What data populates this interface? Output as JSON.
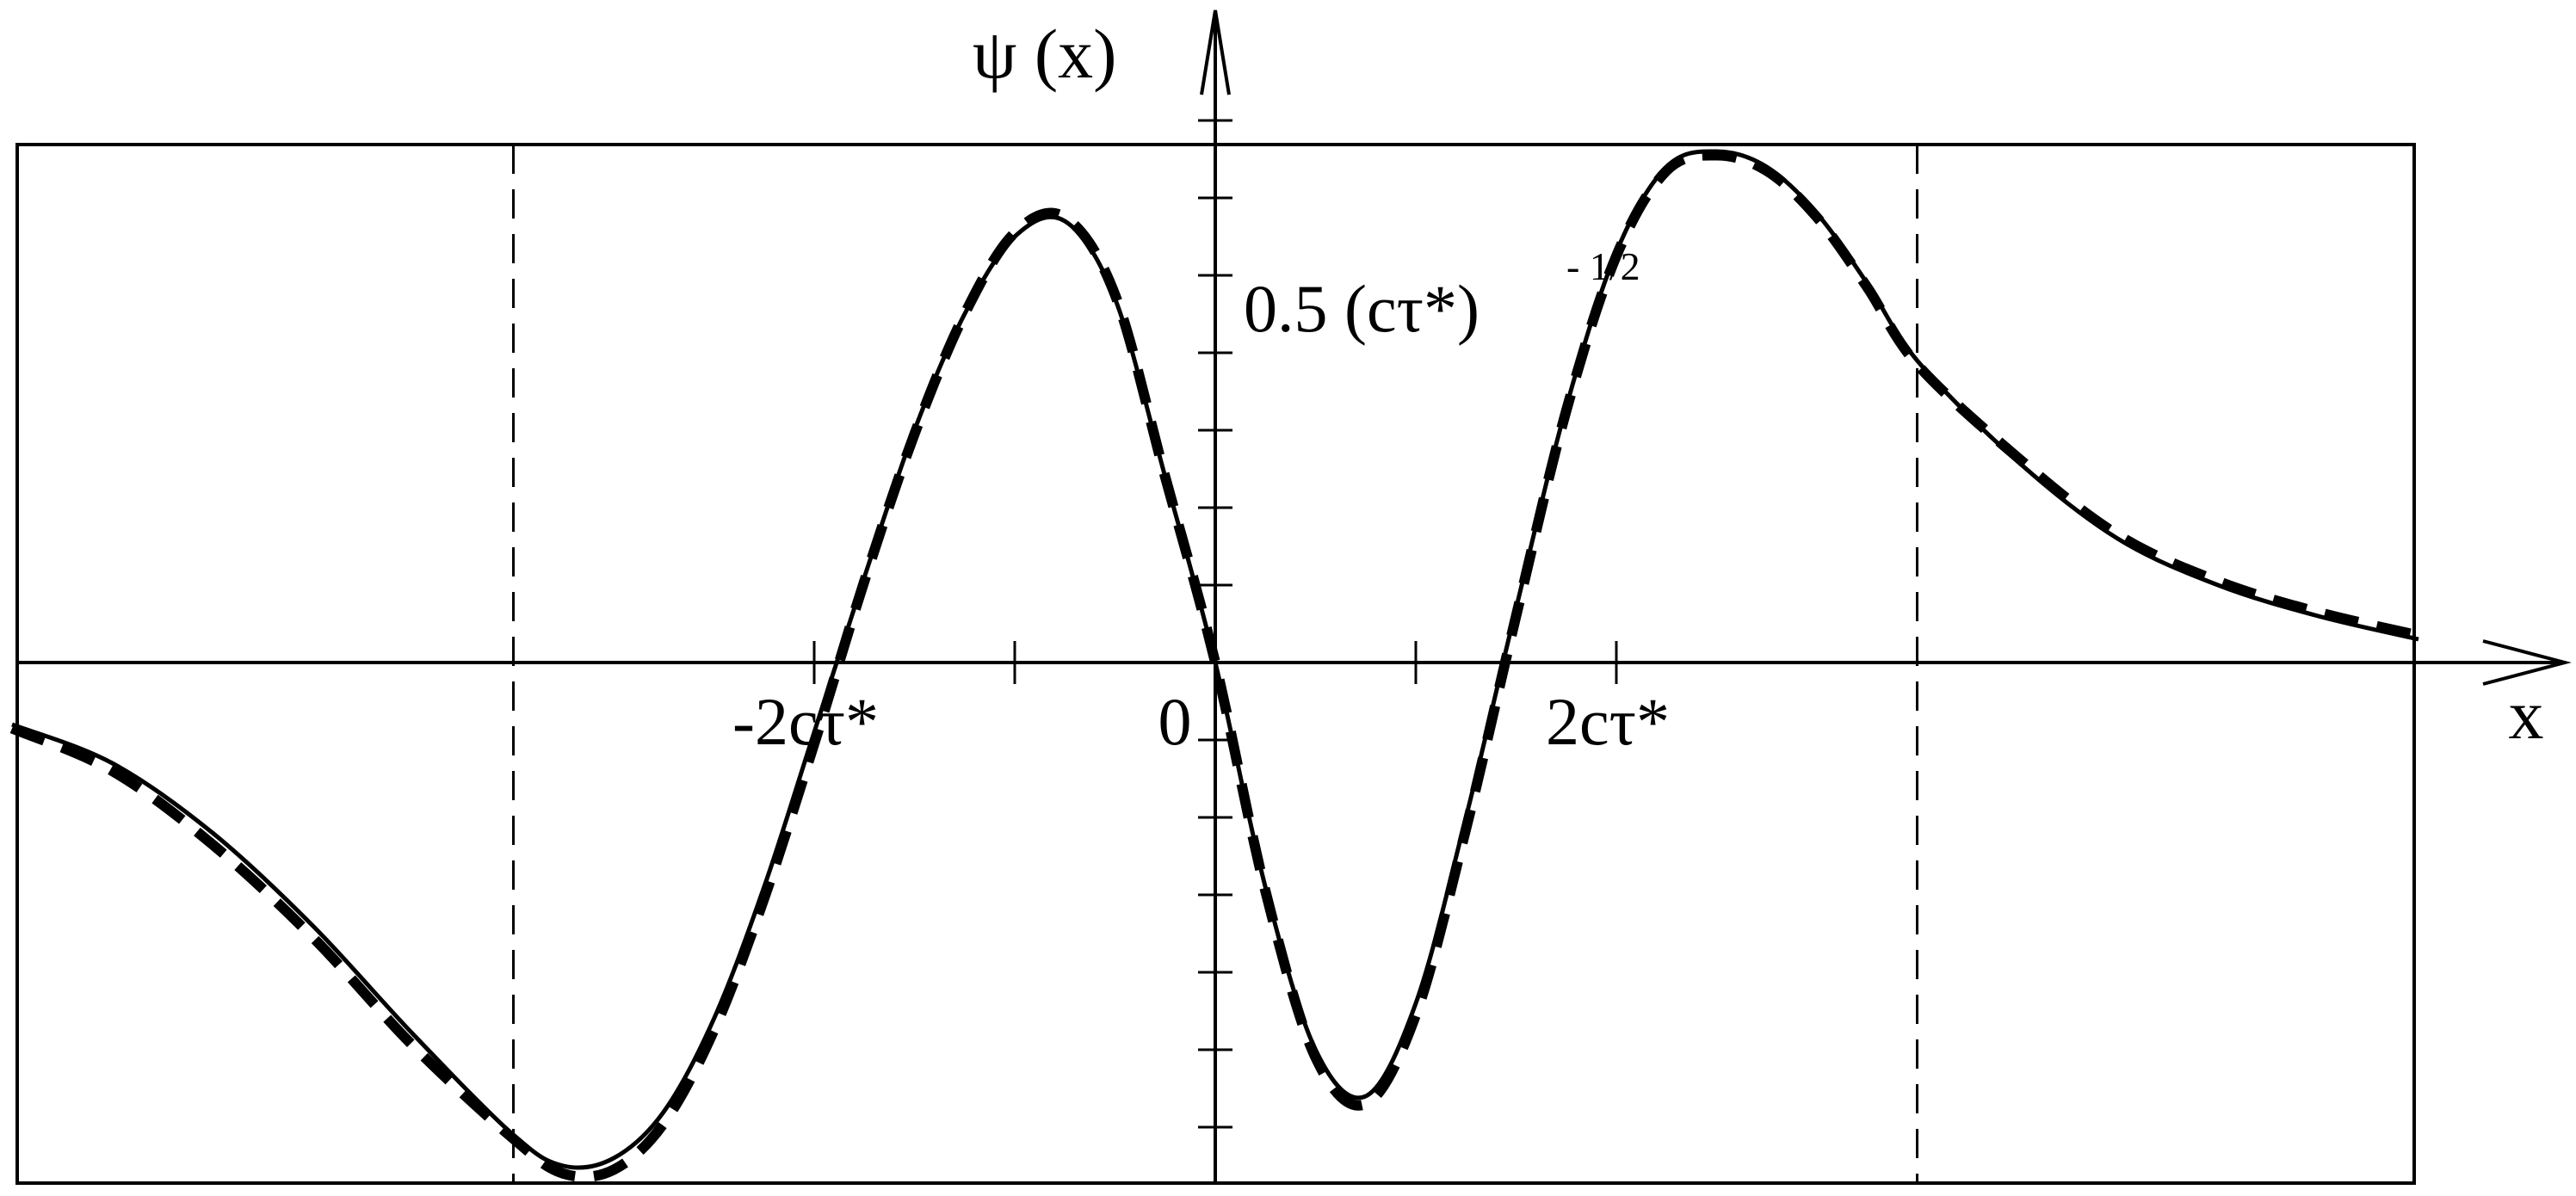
{
  "chart_data": {
    "type": "line",
    "title": "",
    "xlabel": "x",
    "ylabel": "ψ (x)",
    "x_tick_labels": [
      "-2cτ*",
      "0",
      "2cτ*"
    ],
    "x_ticks": [
      -2,
      0,
      2
    ],
    "y_tick_annotation": "0.5 (cτ*)",
    "y_tick_annotation_exponent": "- 1/2",
    "y_tick_annotation_value": 0.5,
    "xlim": [
      -6,
      6
    ],
    "ylim": [
      -0.75,
      0.75
    ],
    "vertical_dashed_lines_x": [
      -3.5,
      3.5
    ],
    "grid": false,
    "series": [
      {
        "style": "solid",
        "x": [
          -6.0,
          -5.5,
          -5.0,
          -4.5,
          -4.0,
          -3.5,
          -3.25,
          -3.0,
          -2.75,
          -2.5,
          -2.25,
          -2.0,
          -1.75,
          -1.5,
          -1.25,
          -1.0,
          -0.75,
          -0.5,
          -0.25,
          0.0,
          0.25,
          0.5,
          0.75,
          1.0,
          1.25,
          1.5,
          1.75,
          2.0,
          2.25,
          2.5,
          2.75,
          3.0,
          3.25,
          3.5,
          4.0,
          4.5,
          5.0,
          5.5,
          6.0
        ],
        "y": [
          -0.08,
          -0.13,
          -0.22,
          -0.34,
          -0.48,
          -0.61,
          -0.65,
          -0.64,
          -0.58,
          -0.46,
          -0.29,
          -0.09,
          0.11,
          0.3,
          0.45,
          0.55,
          0.57,
          0.47,
          0.24,
          0.0,
          -0.29,
          -0.5,
          -0.56,
          -0.44,
          -0.2,
          0.07,
          0.33,
          0.53,
          0.64,
          0.66,
          0.64,
          0.58,
          0.49,
          0.39,
          0.26,
          0.16,
          0.1,
          0.06,
          0.03
        ]
      },
      {
        "style": "dashed",
        "x": [
          -6.0,
          -5.5,
          -5.0,
          -4.5,
          -4.0,
          -3.5,
          -3.25,
          -3.0,
          -2.75,
          -2.5,
          -2.25,
          -2.0,
          -1.75,
          -1.5,
          -1.25,
          -1.0,
          -0.75,
          -0.5,
          -0.25,
          0.0,
          0.25,
          0.5,
          0.75,
          1.0,
          1.25,
          1.5,
          1.75,
          2.0,
          2.25,
          2.5,
          2.75,
          3.0,
          3.25,
          3.5,
          4.0,
          4.5,
          5.0,
          5.5,
          6.0
        ],
        "y": [
          -0.085,
          -0.14,
          -0.235,
          -0.355,
          -0.495,
          -0.615,
          -0.66,
          -0.655,
          -0.595,
          -0.475,
          -0.305,
          -0.105,
          0.105,
          0.295,
          0.45,
          0.555,
          0.575,
          0.475,
          0.24,
          0.0,
          -0.295,
          -0.51,
          -0.57,
          -0.455,
          -0.215,
          0.06,
          0.325,
          0.525,
          0.635,
          0.655,
          0.635,
          0.575,
          0.485,
          0.385,
          0.265,
          0.165,
          0.105,
          0.065,
          0.035
        ]
      }
    ]
  }
}
